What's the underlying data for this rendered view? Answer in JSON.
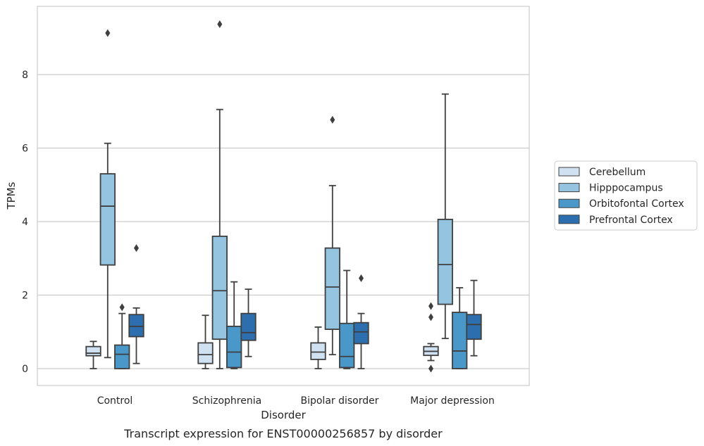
{
  "caption": "Transcript expression for ENST00000256857 by disorder",
  "chart_data": {
    "type": "box",
    "xlabel": "Disorder",
    "ylabel": "TPMs",
    "ylim": [
      -0.45,
      9.75
    ],
    "yticks": [
      0,
      2,
      4,
      6,
      8
    ],
    "grid": "horizontal",
    "legend_position": "right",
    "categories": [
      "Control",
      "Schizophrenia",
      "Bipolar disorder",
      "Major depression"
    ],
    "series": [
      {
        "name": "Cerebellum",
        "color": "#d0e1f2",
        "boxes": [
          {
            "whislo": 0.0,
            "q1": 0.35,
            "med": 0.42,
            "q3": 0.6,
            "whishi": 0.74,
            "fliers": []
          },
          {
            "whislo": 0.0,
            "q1": 0.14,
            "med": 0.38,
            "q3": 0.7,
            "whishi": 1.45,
            "fliers": []
          },
          {
            "whislo": 0.0,
            "q1": 0.25,
            "med": 0.45,
            "q3": 0.7,
            "whishi": 1.13,
            "fliers": []
          },
          {
            "whislo": 0.22,
            "q1": 0.36,
            "med": 0.47,
            "q3": 0.6,
            "whishi": 0.68,
            "fliers": [
              1.4,
              1.7,
              0.0
            ]
          }
        ]
      },
      {
        "name": "Hipppocampus",
        "color": "#94c4df",
        "boxes": [
          {
            "whislo": 0.3,
            "q1": 2.82,
            "med": 4.42,
            "q3": 5.3,
            "whishi": 6.13,
            "fliers": [
              9.13
            ]
          },
          {
            "whislo": 0.0,
            "q1": 0.8,
            "med": 2.12,
            "q3": 3.6,
            "whishi": 7.05,
            "fliers": [
              9.37
            ]
          },
          {
            "whislo": 0.38,
            "q1": 1.07,
            "med": 2.22,
            "q3": 3.28,
            "whishi": 4.98,
            "fliers": [
              6.77
            ]
          },
          {
            "whislo": 0.82,
            "q1": 1.75,
            "med": 2.83,
            "q3": 4.06,
            "whishi": 7.47,
            "fliers": []
          }
        ]
      },
      {
        "name": "Orbitofontal Cortex",
        "color": "#4a98c9",
        "boxes": [
          {
            "whislo": 0.0,
            "q1": 0.0,
            "med": 0.39,
            "q3": 0.64,
            "whishi": 1.5,
            "fliers": [
              1.67
            ]
          },
          {
            "whislo": 0.0,
            "q1": 0.03,
            "med": 0.45,
            "q3": 1.15,
            "whishi": 2.36,
            "fliers": []
          },
          {
            "whislo": 0.0,
            "q1": 0.03,
            "med": 0.33,
            "q3": 1.23,
            "whishi": 2.67,
            "fliers": []
          },
          {
            "whislo": 0.0,
            "q1": 0.0,
            "med": 0.48,
            "q3": 1.53,
            "whishi": 2.2,
            "fliers": []
          }
        ]
      },
      {
        "name": "Prefrontal Cortex",
        "color": "#2d6fae",
        "boxes": [
          {
            "whislo": 0.14,
            "q1": 0.87,
            "med": 1.15,
            "q3": 1.47,
            "whishi": 1.65,
            "fliers": [
              3.28
            ]
          },
          {
            "whislo": 0.33,
            "q1": 0.77,
            "med": 0.98,
            "q3": 1.5,
            "whishi": 2.16,
            "fliers": []
          },
          {
            "whislo": 0.0,
            "q1": 0.68,
            "med": 1.0,
            "q3": 1.25,
            "whishi": 1.5,
            "fliers": [
              2.46
            ]
          },
          {
            "whislo": 0.35,
            "q1": 0.8,
            "med": 1.2,
            "q3": 1.47,
            "whishi": 2.4,
            "fliers": []
          }
        ]
      }
    ]
  }
}
